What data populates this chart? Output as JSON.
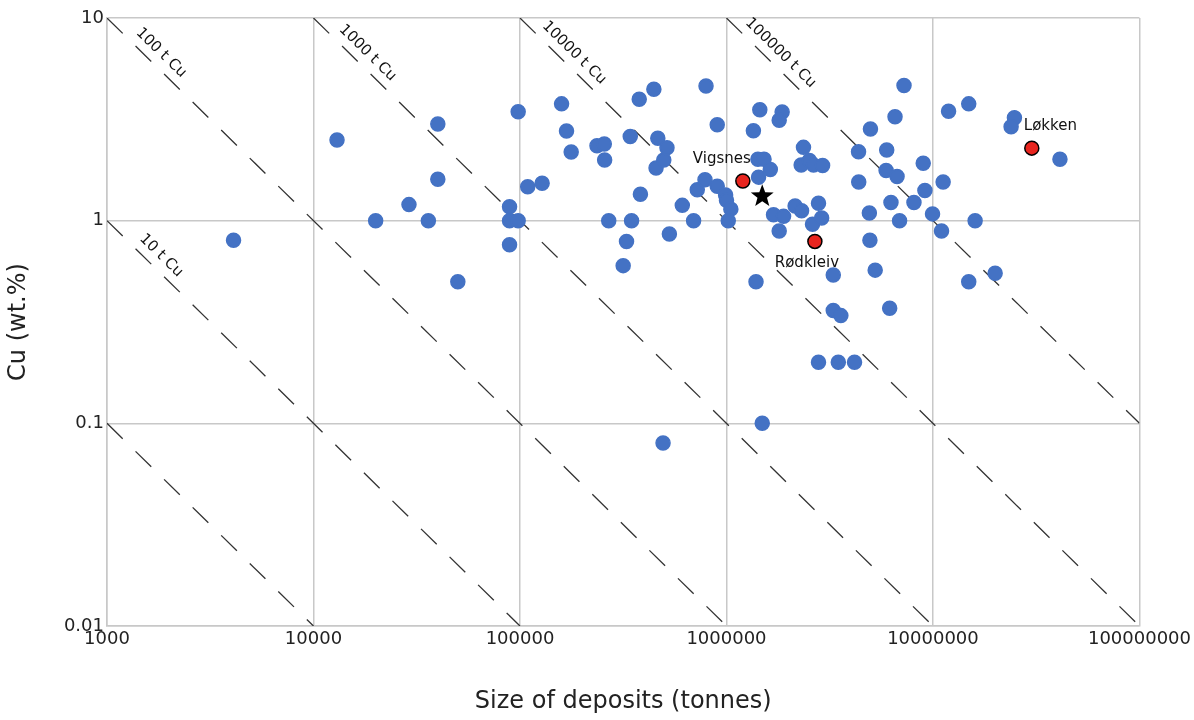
{
  "chart_data": {
    "type": "scatter",
    "xlabel": "Size of deposits (tonnes)",
    "ylabel": "Cu (wt.%)",
    "log": "xy",
    "grid": true,
    "legend": false,
    "xlim": [
      1000,
      100000000
    ],
    "xticks": [
      1000,
      10000,
      100000,
      1000000,
      10000000,
      100000000
    ],
    "ylim": [
      0.01,
      10
    ],
    "yticks": [
      0.01,
      0.1,
      1,
      10
    ],
    "series": [
      {
        "type": "line",
        "color": "#333333",
        "marker": "none",
        "line_style": "dashed",
        "x": [
          1000,
          10000
        ],
        "values": [
          0.1,
          0.01
        ]
      },
      {
        "type": "line",
        "name": "10 t Cu",
        "color": "#333333",
        "marker": "none",
        "line_style": "dashed",
        "x": [
          1000,
          100000
        ],
        "values": [
          1,
          0.01
        ]
      },
      {
        "type": "line",
        "name": "100 t Cu",
        "color": "#333333",
        "marker": "none",
        "line_style": "dashed",
        "x": [
          1000,
          1000000
        ],
        "values": [
          10,
          0.01
        ]
      },
      {
        "type": "line",
        "name": "1000 t Cu",
        "color": "#333333",
        "marker": "none",
        "line_style": "dashed",
        "x": [
          10000,
          10000000
        ],
        "values": [
          10,
          0.01
        ]
      },
      {
        "type": "line",
        "name": "10000 t Cu",
        "color": "#333333",
        "marker": "none",
        "line_style": "dashed",
        "x": [
          100000,
          100000000
        ],
        "values": [
          10,
          0.01
        ]
      },
      {
        "type": "line",
        "name": "100000 t Cu",
        "color": "#333333",
        "marker": "none",
        "line_style": "dashed",
        "x": [
          1000000,
          100000000
        ],
        "values": [
          10,
          0.1
        ]
      },
      {
        "color": "#4472c4",
        "marker": "circle",
        "x": [
          4100,
          13000,
          20000,
          29000,
          36000,
          40000,
          40000,
          50000,
          89000,
          89000,
          89000,
          98000,
          98000,
          109000,
          128000,
          159000,
          168000,
          177000,
          236000,
          256000,
          257000,
          269000,
          316000,
          328000,
          342000,
          347000,
          378000,
          383000,
          445000,
          456000,
          465000,
          497000,
          515000,
          529000,
          493000,
          611000,
          693000,
          722000,
          787000,
          796000,
          902000,
          902000,
          990000,
          1000000,
          1050000,
          1020000,
          1350000,
          1390000,
          1420000,
          1450000,
          1490000,
          1520000,
          1430000,
          1630000,
          1690000,
          1800000,
          1860000,
          1800000,
          1890000,
          2150000,
          2300000,
          2310000,
          2360000,
          2520000,
          2610000,
          2640000,
          2790000,
          2890000,
          2790000,
          2920000,
          3290000,
          3290000,
          3580000,
          3480000,
          4170000,
          4360000,
          4370000,
          4920000,
          4950000,
          4980000,
          5250000,
          5930000,
          5970000,
          6170000,
          6260000,
          6550000,
          6700000,
          6890000,
          7240000,
          8090000,
          8970000,
          9140000,
          9950000,
          11000000,
          11200000,
          11900000,
          14900000,
          14900000,
          16000000,
          20000000,
          24800000,
          23900000,
          41200000
        ],
        "values": [
          0.8,
          2.5,
          1.0,
          1.2,
          1.0,
          3.0,
          1.6,
          0.5,
          1.17,
          1.0,
          0.76,
          1.0,
          3.45,
          1.47,
          1.53,
          3.77,
          2.77,
          2.18,
          2.34,
          2.39,
          1.99,
          1.0,
          0.6,
          0.79,
          2.6,
          1.0,
          3.97,
          1.35,
          4.45,
          1.82,
          2.55,
          1.99,
          2.29,
          0.86,
          0.08,
          1.19,
          1.0,
          1.42,
          1.59,
          4.62,
          1.48,
          2.97,
          1.34,
          1.26,
          1.14,
          1.0,
          2.78,
          0.5,
          2.01,
          3.53,
          0.1,
          2.01,
          1.64,
          1.79,
          1.07,
          0.89,
          3.44,
          3.13,
          1.05,
          1.18,
          1.88,
          1.12,
          2.3,
          1.98,
          0.96,
          1.88,
          1.22,
          1.03,
          0.2,
          1.87,
          0.54,
          0.36,
          0.34,
          0.2,
          0.2,
          2.19,
          1.55,
          1.09,
          0.8,
          2.83,
          0.57,
          1.77,
          2.23,
          0.37,
          1.23,
          3.26,
          1.65,
          1.0,
          4.64,
          1.23,
          1.92,
          1.41,
          1.08,
          0.89,
          1.55,
          3.47,
          3.77,
          0.5,
          1.0,
          0.55,
          3.22,
          2.91,
          2.01
        ]
      },
      {
        "color": "#e8251f",
        "marker": "circle",
        "x": [
          1200000,
          2680000,
          30100000
        ],
        "values": [
          1.57,
          0.79,
          2.28
        ]
      },
      {
        "color": "#000000",
        "marker": "star",
        "x": [
          1490000
        ],
        "values": [
          1.32
        ]
      }
    ],
    "annotations": [
      {
        "text": "Vigsnes",
        "x": 1200000,
        "y": 1.57
      },
      {
        "text": "Rødkleiv",
        "x": 2680000,
        "y": 0.79
      },
      {
        "text": "Løkken",
        "x": 30100000,
        "y": 2.28
      }
    ]
  }
}
